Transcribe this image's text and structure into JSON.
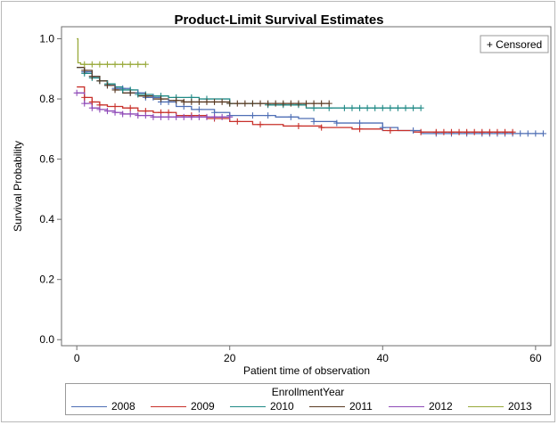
{
  "chart_data": {
    "type": "line",
    "title": "Product-Limit Survival Estimates",
    "xlabel": "Patient time of observation",
    "ylabel": "Survival Probability",
    "xlim": [
      -2,
      62
    ],
    "ylim": [
      -0.02,
      1.04
    ],
    "xticks": [
      "0",
      "20",
      "40",
      "60"
    ],
    "yticks": [
      "0.0",
      "0.2",
      "0.4",
      "0.6",
      "0.8",
      "1.0"
    ],
    "censored_label": "+ Censored",
    "legend_title": "EnrollmentYear",
    "series": [
      {
        "name": "2008",
        "color": "#4f6fb5",
        "steps": [
          [
            0,
            0.905
          ],
          [
            1,
            0.89
          ],
          [
            2,
            0.875
          ],
          [
            3,
            0.86
          ],
          [
            4,
            0.845
          ],
          [
            5,
            0.835
          ],
          [
            7,
            0.82
          ],
          [
            9,
            0.805
          ],
          [
            11,
            0.79
          ],
          [
            13,
            0.775
          ],
          [
            15,
            0.765
          ],
          [
            18,
            0.755
          ],
          [
            20,
            0.745
          ],
          [
            26,
            0.74
          ],
          [
            29,
            0.735
          ],
          [
            31,
            0.725
          ],
          [
            34,
            0.72
          ],
          [
            40,
            0.705
          ],
          [
            42,
            0.695
          ],
          [
            45,
            0.685
          ],
          [
            61,
            0.685
          ]
        ],
        "censored": [
          1,
          2,
          3,
          4,
          5,
          6,
          7,
          8,
          9,
          10,
          11,
          12,
          14,
          16,
          18,
          20,
          23,
          25,
          28,
          31,
          34,
          37,
          40,
          44,
          47,
          49,
          51,
          53,
          54,
          55,
          56,
          57,
          58,
          59,
          60,
          61
        ]
      },
      {
        "name": "2009",
        "color": "#c8302a",
        "steps": [
          [
            0,
            0.84
          ],
          [
            1,
            0.805
          ],
          [
            2,
            0.79
          ],
          [
            3,
            0.78
          ],
          [
            4,
            0.775
          ],
          [
            6,
            0.77
          ],
          [
            8,
            0.76
          ],
          [
            10,
            0.755
          ],
          [
            13,
            0.745
          ],
          [
            17,
            0.735
          ],
          [
            20,
            0.725
          ],
          [
            23,
            0.715
          ],
          [
            27,
            0.71
          ],
          [
            32,
            0.705
          ],
          [
            36,
            0.7
          ],
          [
            40,
            0.695
          ],
          [
            44,
            0.69
          ],
          [
            57,
            0.69
          ]
        ],
        "censored": [
          1,
          2,
          3,
          5,
          7,
          9,
          11,
          12,
          15,
          18,
          21,
          24,
          29,
          32,
          37,
          41,
          45,
          47,
          48,
          49,
          50,
          51,
          52,
          53,
          54,
          55,
          56,
          57
        ]
      },
      {
        "name": "2010",
        "color": "#208a86",
        "steps": [
          [
            0,
            0.905
          ],
          [
            1,
            0.885
          ],
          [
            2,
            0.87
          ],
          [
            3,
            0.86
          ],
          [
            4,
            0.85
          ],
          [
            5,
            0.84
          ],
          [
            6,
            0.83
          ],
          [
            8,
            0.815
          ],
          [
            10,
            0.81
          ],
          [
            12,
            0.805
          ],
          [
            16,
            0.8
          ],
          [
            20,
            0.785
          ],
          [
            25,
            0.78
          ],
          [
            30,
            0.77
          ],
          [
            45,
            0.77
          ]
        ],
        "censored": [
          1,
          2,
          3,
          4,
          6,
          7,
          8,
          9,
          11,
          13,
          15,
          17,
          20,
          23,
          25,
          27,
          29,
          31,
          33,
          35,
          36,
          37,
          38,
          39,
          40,
          41,
          42,
          43,
          44,
          45
        ]
      },
      {
        "name": "2011",
        "color": "#5a3a22",
        "steps": [
          [
            0,
            0.905
          ],
          [
            1,
            0.895
          ],
          [
            2,
            0.875
          ],
          [
            3,
            0.86
          ],
          [
            4,
            0.845
          ],
          [
            5,
            0.83
          ],
          [
            6,
            0.82
          ],
          [
            8,
            0.81
          ],
          [
            10,
            0.8
          ],
          [
            12,
            0.795
          ],
          [
            14,
            0.79
          ],
          [
            20,
            0.785
          ],
          [
            33,
            0.785
          ]
        ],
        "censored": [
          1,
          2,
          3,
          4,
          5,
          7,
          9,
          11,
          13,
          14,
          15,
          16,
          17,
          18,
          19,
          20,
          21,
          22,
          23,
          24,
          25,
          26,
          27,
          28,
          29,
          30,
          31,
          32,
          33
        ]
      },
      {
        "name": "2012",
        "color": "#8f4bb8",
        "steps": [
          [
            0,
            0.82
          ],
          [
            1,
            0.785
          ],
          [
            2,
            0.77
          ],
          [
            3,
            0.765
          ],
          [
            4,
            0.76
          ],
          [
            5,
            0.755
          ],
          [
            6,
            0.75
          ],
          [
            8,
            0.745
          ],
          [
            10,
            0.74
          ],
          [
            20,
            0.74
          ]
        ],
        "censored": [
          0,
          1,
          2,
          3,
          4,
          5,
          6,
          7,
          8,
          9,
          10,
          11,
          12,
          13,
          14,
          15,
          16,
          17,
          18,
          19,
          20
        ]
      },
      {
        "name": "2013",
        "color": "#98a93a",
        "steps": [
          [
            0,
            1.0
          ],
          [
            0.15,
            0.92
          ],
          [
            0.5,
            0.915
          ],
          [
            9,
            0.915
          ]
        ],
        "censored": [
          1,
          2,
          3,
          4,
          5,
          6,
          7,
          8,
          9
        ]
      }
    ]
  }
}
